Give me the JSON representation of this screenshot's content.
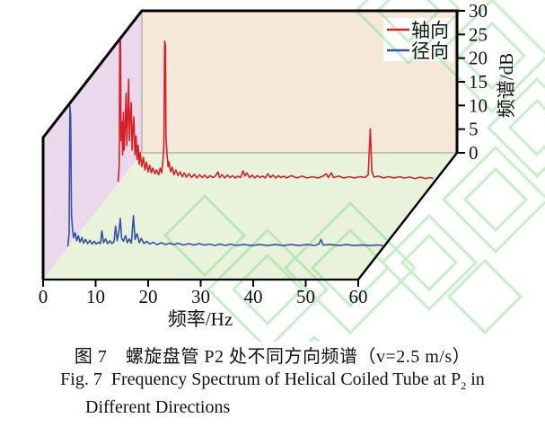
{
  "figure": {
    "caption_cn": "图 7　螺旋盘管 P2 处不同方向频谱（v=2.5 m/s）",
    "caption_en_prefix": "Fig. 7  Frequency Spectrum of Helical Coiled Tube at P",
    "caption_en_sub": "2",
    "caption_en_suffix": " in",
    "caption_en_line2": "Different Directions"
  },
  "legend": {
    "items": [
      {
        "label": "轴向",
        "color": "#d62027"
      },
      {
        "label": "径向",
        "color": "#3152a5"
      }
    ]
  },
  "axes": {
    "x_label": "频率/Hz",
    "z_label": "频谱/dB",
    "x_tick_labels": [
      "0",
      "10",
      "20",
      "30",
      "40",
      "50",
      "60"
    ],
    "z_tick_labels": [
      "0",
      "5",
      "10",
      "15",
      "20",
      "25",
      "30"
    ]
  },
  "colors": {
    "back_wall": "#f5e8d8",
    "left_wall": "#ecd8ec",
    "floor": "#e9f2db",
    "watermark": "#8ce08f",
    "axis": "#000000",
    "inner_edge": "#b0a79c"
  },
  "chart_data": {
    "type": "line",
    "projection": "3d-waterfall",
    "title": "螺旋盘管 P2 处不同方向频谱 (v=2.5 m/s)",
    "xlabel": "频率/Hz",
    "zlabel": "频谱/dB",
    "xlim": [
      0,
      60
    ],
    "zlim": [
      0,
      30
    ],
    "x_ticks": [
      0,
      10,
      20,
      30,
      40,
      50,
      60
    ],
    "z_ticks": [
      0,
      5,
      10,
      15,
      20,
      25,
      30
    ],
    "grid": false,
    "legend_position": "top-right",
    "series": [
      {
        "name": "轴向",
        "direction": "axial",
        "color": "#d62027",
        "depth": 0.76,
        "notable_peaks": [
          {
            "hz": 0.4,
            "db": 30,
            "note": "clipped at axis max"
          },
          {
            "hz": 2.0,
            "db": 22
          },
          {
            "hz": 8.9,
            "db": 30,
            "note": "clipped at axis max"
          },
          {
            "hz": 48,
            "db": 11.5
          }
        ],
        "points": [
          [
            0,
            0.3
          ],
          [
            0.2,
            4
          ],
          [
            0.3,
            30
          ],
          [
            0.45,
            30
          ],
          [
            0.55,
            9
          ],
          [
            0.7,
            13
          ],
          [
            0.85,
            6
          ],
          [
            1.0,
            15
          ],
          [
            1.15,
            7
          ],
          [
            1.3,
            11
          ],
          [
            1.5,
            19
          ],
          [
            1.65,
            8
          ],
          [
            1.8,
            13
          ],
          [
            2.0,
            22
          ],
          [
            2.15,
            9
          ],
          [
            2.3,
            14
          ],
          [
            2.5,
            17
          ],
          [
            2.65,
            7
          ],
          [
            2.8,
            11
          ],
          [
            3.0,
            14
          ],
          [
            3.2,
            6
          ],
          [
            3.4,
            10
          ],
          [
            3.6,
            5
          ],
          [
            3.8,
            8
          ],
          [
            4.0,
            4
          ],
          [
            4.2,
            6.5
          ],
          [
            4.5,
            3.5
          ],
          [
            4.8,
            5.5
          ],
          [
            5.1,
            2.8
          ],
          [
            5.4,
            4.5
          ],
          [
            5.7,
            2.4
          ],
          [
            6.0,
            3.8
          ],
          [
            6.3,
            2.2
          ],
          [
            6.6,
            3.2
          ],
          [
            7.0,
            2.0
          ],
          [
            7.3,
            2.8
          ],
          [
            7.7,
            1.8
          ],
          [
            8.0,
            3.2
          ],
          [
            8.3,
            2.2
          ],
          [
            8.55,
            5
          ],
          [
            8.7,
            8
          ],
          [
            8.85,
            30
          ],
          [
            9.0,
            29
          ],
          [
            9.1,
            10
          ],
          [
            9.3,
            6
          ],
          [
            9.5,
            3.5
          ],
          [
            9.7,
            4.5
          ],
          [
            10.0,
            2.4
          ],
          [
            10.3,
            3.4
          ],
          [
            10.6,
            1.8
          ],
          [
            11.0,
            2.8
          ],
          [
            11.4,
            1.6
          ],
          [
            11.8,
            2.4
          ],
          [
            12.2,
            1.4
          ],
          [
            12.6,
            2.2
          ],
          [
            13.0,
            1.3
          ],
          [
            13.5,
            2.0
          ],
          [
            14.0,
            1.2
          ],
          [
            14.5,
            1.9
          ],
          [
            15.0,
            1.1
          ],
          [
            15.5,
            1.8
          ],
          [
            16.0,
            1.2
          ],
          [
            16.5,
            1.7
          ],
          [
            17.0,
            1.1
          ],
          [
            17.5,
            1.6
          ],
          [
            18.0,
            1.2
          ],
          [
            18.5,
            1.5
          ],
          [
            19.0,
            2.4
          ],
          [
            19.3,
            1.2
          ],
          [
            19.8,
            1.8
          ],
          [
            20.3,
            1.1
          ],
          [
            20.8,
            1.7
          ],
          [
            21.3,
            1.2
          ],
          [
            21.8,
            1.6
          ],
          [
            22.3,
            1.1
          ],
          [
            22.8,
            1.5
          ],
          [
            23.3,
            1.2
          ],
          [
            23.8,
            2.6
          ],
          [
            24.1,
            1.5
          ],
          [
            24.5,
            2.2
          ],
          [
            25.0,
            1.2
          ],
          [
            25.5,
            1.7
          ],
          [
            26.0,
            1.1
          ],
          [
            26.5,
            1.6
          ],
          [
            27.0,
            1.2
          ],
          [
            27.5,
            1.5
          ],
          [
            28.0,
            1.1
          ],
          [
            28.5,
            2.0
          ],
          [
            29.0,
            1.2
          ],
          [
            29.5,
            1.7
          ],
          [
            30.0,
            1.1
          ],
          [
            30.5,
            1.6
          ],
          [
            31.0,
            1.2
          ],
          [
            31.5,
            1.5
          ],
          [
            32.0,
            1.1
          ],
          [
            33.0,
            1.6
          ],
          [
            34.0,
            1.1
          ],
          [
            35.0,
            1.5
          ],
          [
            36.0,
            1.1
          ],
          [
            37.0,
            1.4
          ],
          [
            38.0,
            1.1
          ],
          [
            39.0,
            1.5
          ],
          [
            39.6,
            2.0
          ],
          [
            40.0,
            1.2
          ],
          [
            40.6,
            2.2
          ],
          [
            41.0,
            1.2
          ],
          [
            42.0,
            1.5
          ],
          [
            43.0,
            1.1
          ],
          [
            44.0,
            1.4
          ],
          [
            45.0,
            1.1
          ],
          [
            46.0,
            1.4
          ],
          [
            47.0,
            1.2
          ],
          [
            47.6,
            1.8
          ],
          [
            48.0,
            11.5
          ],
          [
            48.3,
            2.5
          ],
          [
            48.7,
            1.3
          ],
          [
            49.5,
            1.5
          ],
          [
            50.5,
            1.1
          ],
          [
            51.5,
            1.4
          ],
          [
            52.5,
            1.1
          ],
          [
            53.5,
            1.4
          ],
          [
            54.5,
            1.1
          ],
          [
            55.5,
            1.3
          ],
          [
            56.5,
            1.0
          ],
          [
            57.5,
            1.3
          ],
          [
            58.5,
            1.0
          ],
          [
            59.3,
            1.2
          ],
          [
            60,
            1.0
          ]
        ]
      },
      {
        "name": "径向",
        "direction": "radial",
        "color": "#3152a5",
        "depth": 0.25,
        "notable_peaks": [
          {
            "hz": 0.5,
            "db": 30,
            "note": "clipped at axis max"
          },
          {
            "hz": 10,
            "db": 6.2
          },
          {
            "hz": 12.5,
            "db": 6.8
          },
          {
            "hz": 48,
            "db": 1.8
          }
        ],
        "points": [
          [
            0,
            0.3
          ],
          [
            0.25,
            3
          ],
          [
            0.4,
            30
          ],
          [
            0.55,
            28
          ],
          [
            0.7,
            7
          ],
          [
            0.9,
            4
          ],
          [
            1.1,
            2.2
          ],
          [
            1.4,
            3.2
          ],
          [
            1.7,
            1.5
          ],
          [
            2.0,
            2.6
          ],
          [
            2.3,
            1.2
          ],
          [
            2.7,
            2.2
          ],
          [
            3.0,
            1.0
          ],
          [
            3.4,
            1.8
          ],
          [
            3.8,
            0.9
          ],
          [
            4.2,
            1.6
          ],
          [
            4.6,
            0.8
          ],
          [
            5.0,
            1.4
          ],
          [
            5.4,
            0.8
          ],
          [
            5.8,
            1.2
          ],
          [
            6.2,
            0.9
          ],
          [
            6.5,
            3.6
          ],
          [
            6.8,
            1.1
          ],
          [
            7.2,
            1.9
          ],
          [
            7.6,
            0.9
          ],
          [
            8.0,
            1.5
          ],
          [
            8.4,
            0.9
          ],
          [
            8.8,
            1.3
          ],
          [
            9.1,
            4.6
          ],
          [
            9.4,
            1.5
          ],
          [
            9.7,
            3.2
          ],
          [
            10.0,
            6.2
          ],
          [
            10.25,
            2.0
          ],
          [
            10.6,
            1.4
          ],
          [
            11.0,
            2.6
          ],
          [
            11.35,
            1.1
          ],
          [
            11.7,
            1.9
          ],
          [
            12.1,
            1.0
          ],
          [
            12.5,
            6.8
          ],
          [
            12.8,
            1.8
          ],
          [
            13.2,
            3.0
          ],
          [
            13.6,
            1.1
          ],
          [
            14.0,
            2.0
          ],
          [
            14.5,
            0.9
          ],
          [
            15.0,
            1.4
          ],
          [
            15.6,
            0.8
          ],
          [
            16.2,
            1.2
          ],
          [
            17.0,
            0.7
          ],
          [
            17.8,
            1.1
          ],
          [
            18.6,
            0.7
          ],
          [
            19.4,
            1.0
          ],
          [
            20.2,
            0.7
          ],
          [
            21.0,
            1.0
          ],
          [
            22.0,
            0.6
          ],
          [
            23.0,
            0.9
          ],
          [
            24.0,
            0.6
          ],
          [
            25.0,
            0.9
          ],
          [
            26.0,
            0.6
          ],
          [
            27.0,
            0.8
          ],
          [
            28.0,
            0.5
          ],
          [
            29.0,
            0.8
          ],
          [
            30.0,
            0.5
          ],
          [
            31.0,
            0.8
          ],
          [
            32.0,
            0.5
          ],
          [
            33.5,
            0.7
          ],
          [
            35.0,
            0.5
          ],
          [
            36.5,
            0.7
          ],
          [
            38.0,
            0.5
          ],
          [
            39.5,
            0.7
          ],
          [
            41.0,
            0.5
          ],
          [
            42.5,
            0.7
          ],
          [
            44.0,
            0.5
          ],
          [
            45.5,
            0.7
          ],
          [
            47.0,
            0.5
          ],
          [
            47.8,
            0.8
          ],
          [
            48.2,
            1.8
          ],
          [
            48.6,
            0.6
          ],
          [
            50.0,
            0.7
          ],
          [
            51.5,
            0.5
          ],
          [
            53.0,
            0.7
          ],
          [
            54.5,
            0.5
          ],
          [
            56.0,
            0.6
          ],
          [
            57.5,
            0.5
          ],
          [
            59.0,
            0.6
          ],
          [
            60,
            0.5
          ]
        ]
      }
    ]
  }
}
